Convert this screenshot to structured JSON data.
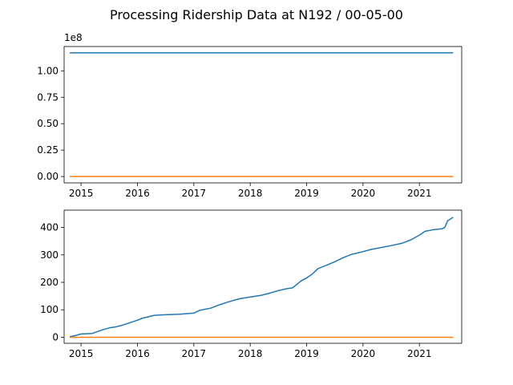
{
  "figure": {
    "suptitle": "Processing Ridership Data at N192 / 00-05-00"
  },
  "colors": {
    "series_a": "#1f77b4",
    "series_b": "#ff7f0e"
  },
  "chart_data": [
    {
      "type": "line",
      "title": "",
      "xlabel": "",
      "ylabel": "",
      "y_offset_text": "1e8",
      "xlim": [
        2014.7,
        2021.75
      ],
      "ylim": [
        -0.06,
        1.23
      ],
      "y_scale_factor": 100000000,
      "x_ticks": [
        2015,
        2016,
        2017,
        2018,
        2019,
        2020,
        2021
      ],
      "x_tick_labels": [
        "2015",
        "2016",
        "2017",
        "2018",
        "2019",
        "2020",
        "2021"
      ],
      "y_ticks": [
        0.0,
        0.25,
        0.5,
        0.75,
        1.0
      ],
      "y_tick_labels": [
        "0.00",
        "0.25",
        "0.50",
        "0.75",
        "1.00"
      ],
      "grid": false,
      "series": [
        {
          "color": "#1f77b4",
          "x": [
            2014.8,
            2021.6
          ],
          "y": [
            1.17,
            1.17
          ]
        },
        {
          "color": "#ff7f0e",
          "x": [
            2014.8,
            2021.6
          ],
          "y": [
            0.0,
            0.0
          ]
        }
      ]
    },
    {
      "type": "line",
      "title": "",
      "xlabel": "",
      "ylabel": "",
      "xlim": [
        2014.7,
        2021.75
      ],
      "ylim": [
        -22,
        463
      ],
      "x_ticks": [
        2015,
        2016,
        2017,
        2018,
        2019,
        2020,
        2021
      ],
      "x_tick_labels": [
        "2015",
        "2016",
        "2017",
        "2018",
        "2019",
        "2020",
        "2021"
      ],
      "y_ticks": [
        0,
        100,
        200,
        300,
        400
      ],
      "y_tick_labels": [
        "0",
        "100",
        "200",
        "300",
        "400"
      ],
      "grid": false,
      "series": [
        {
          "color": "#1f77b4",
          "x": [
            2014.8,
            2014.9,
            2015.0,
            2015.2,
            2015.35,
            2015.5,
            2015.6,
            2015.75,
            2015.9,
            2016.0,
            2016.1,
            2016.3,
            2016.5,
            2016.75,
            2017.0,
            2017.1,
            2017.3,
            2017.45,
            2017.6,
            2017.8,
            2018.0,
            2018.2,
            2018.35,
            2018.5,
            2018.65,
            2018.75,
            2018.9,
            2019.0,
            2019.1,
            2019.2,
            2019.35,
            2019.5,
            2019.65,
            2019.8,
            2020.0,
            2020.15,
            2020.3,
            2020.5,
            2020.7,
            2020.85,
            2021.0,
            2021.1,
            2021.25,
            2021.4,
            2021.45,
            2021.5,
            2021.6
          ],
          "y": [
            2,
            6,
            12,
            14,
            25,
            34,
            37,
            45,
            55,
            62,
            70,
            80,
            82,
            84,
            88,
            98,
            106,
            118,
            128,
            140,
            147,
            153,
            161,
            170,
            177,
            180,
            205,
            216,
            230,
            250,
            262,
            275,
            290,
            302,
            312,
            320,
            326,
            334,
            343,
            355,
            372,
            386,
            392,
            395,
            400,
            424,
            437
          ]
        },
        {
          "color": "#ff7f0e",
          "x": [
            2014.8,
            2021.6
          ],
          "y": [
            0,
            0
          ]
        }
      ]
    }
  ]
}
